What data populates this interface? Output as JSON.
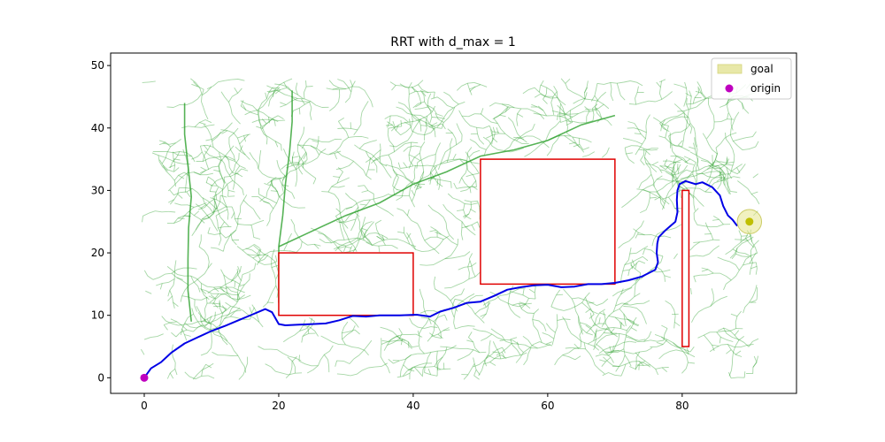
{
  "chart_data": {
    "type": "scatter",
    "title": "RRT with d_max = 1",
    "xlabel": "",
    "ylabel": "",
    "xlim": [
      -5,
      97
    ],
    "ylim": [
      -2.5,
      52
    ],
    "xticks": [
      0,
      20,
      40,
      60,
      80
    ],
    "yticks": [
      0,
      10,
      20,
      30,
      40,
      50
    ],
    "grid": false,
    "legend": {
      "placement": "top-right",
      "entries": [
        {
          "name": "goal",
          "marker": "patch",
          "color": "#e8e8a8"
        },
        {
          "name": "origin",
          "marker": "circle",
          "color": "#bf00bf"
        }
      ]
    },
    "origin": {
      "x": 0,
      "y": 0,
      "color": "#bf00bf"
    },
    "goal": {
      "x": 90,
      "y": 25,
      "radius": 1.8,
      "color": "#bfbf00"
    },
    "obstacles": [
      {
        "x0": 20,
        "y0": 10,
        "x1": 40,
        "y1": 20,
        "color": "#e00000"
      },
      {
        "x0": 50,
        "y0": 15,
        "x1": 70,
        "y1": 35,
        "color": "#e00000"
      },
      {
        "x0": 80,
        "y0": 5,
        "x1": 81,
        "y1": 30,
        "color": "#e00000"
      }
    ],
    "tree": {
      "color": "#2ca02c",
      "trunks": [
        [
          [
            7,
            9
          ],
          [
            6.5,
            14
          ],
          [
            6.5,
            19
          ],
          [
            6.6,
            24
          ],
          [
            7,
            29
          ],
          [
            6.5,
            34
          ],
          [
            6,
            39
          ],
          [
            6,
            44
          ]
        ],
        [
          [
            20,
            21
          ],
          [
            20.6,
            26
          ],
          [
            21,
            31
          ],
          [
            21.6,
            36
          ],
          [
            22,
            41
          ],
          [
            22,
            46
          ]
        ],
        [
          [
            20,
            21
          ],
          [
            25,
            23.5
          ],
          [
            30,
            26
          ],
          [
            35,
            28
          ],
          [
            40,
            31
          ],
          [
            45,
            33
          ],
          [
            50,
            35.5
          ],
          [
            55,
            36.5
          ],
          [
            60,
            38
          ],
          [
            65,
            40.5
          ],
          [
            70,
            42
          ]
        ],
        [
          [
            20,
            12
          ],
          [
            20,
            15
          ],
          [
            20,
            18
          ],
          [
            20,
            21
          ]
        ]
      ]
    },
    "path": {
      "color": "#0000e6",
      "points": [
        [
          0,
          0
        ],
        [
          1,
          1.5
        ],
        [
          2.5,
          2.5
        ],
        [
          4,
          4
        ],
        [
          6,
          5.5
        ],
        [
          8,
          6.5
        ],
        [
          10,
          7.5
        ],
        [
          12,
          8.3
        ],
        [
          14,
          9.2
        ],
        [
          16,
          10.1
        ],
        [
          18,
          11
        ],
        [
          19,
          10.5
        ],
        [
          20,
          8.6
        ],
        [
          21,
          8.4
        ],
        [
          23,
          8.5
        ],
        [
          25,
          8.6
        ],
        [
          27,
          8.7
        ],
        [
          29,
          9.2
        ],
        [
          31,
          9.9
        ],
        [
          33,
          9.8
        ],
        [
          35,
          10
        ],
        [
          38,
          10
        ],
        [
          40.5,
          10.1
        ],
        [
          42.5,
          9.8
        ],
        [
          44,
          10.6
        ],
        [
          46,
          11.2
        ],
        [
          48,
          12
        ],
        [
          50,
          12.2
        ],
        [
          52,
          13.1
        ],
        [
          54,
          14.1
        ],
        [
          56,
          14.5
        ],
        [
          58,
          14.8
        ],
        [
          60,
          14.9
        ],
        [
          62,
          14.5
        ],
        [
          64,
          14.6
        ],
        [
          66,
          15
        ],
        [
          68,
          15
        ],
        [
          70,
          15.2
        ],
        [
          72,
          15.6
        ],
        [
          74,
          16.2
        ],
        [
          76,
          17.3
        ],
        [
          76.4,
          18.5
        ],
        [
          76.2,
          20
        ],
        [
          76.3,
          21.5
        ],
        [
          76.5,
          22.5
        ],
        [
          77.5,
          23.6
        ],
        [
          79,
          25
        ],
        [
          79.3,
          26.5
        ],
        [
          79.2,
          28.5
        ],
        [
          79.3,
          30
        ],
        [
          79.6,
          31
        ],
        [
          80.5,
          31.5
        ],
        [
          82,
          31
        ],
        [
          83,
          31.3
        ],
        [
          84.5,
          30.5
        ],
        [
          85.6,
          29.2
        ],
        [
          86.1,
          27.5
        ],
        [
          86.8,
          26
        ],
        [
          87.5,
          25.3
        ],
        [
          88.2,
          24.3
        ]
      ]
    }
  }
}
